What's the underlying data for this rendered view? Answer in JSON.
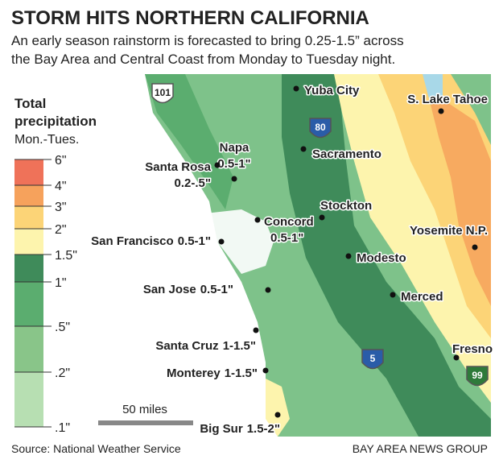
{
  "header": {
    "title": "STORM HITS NORTHERN CALIFORNIA",
    "subtitle": [
      "An early season rainstorm is forecasted to bring 0.25-1.5” across",
      "the Bay Area and Central Coast from Monday to Tuesday night."
    ]
  },
  "legend": {
    "title": [
      "Total",
      "precipitation"
    ],
    "subtitle": "Mon.-Tues.",
    "items": [
      {
        "label": "6\"",
        "color": "#ef7259"
      },
      {
        "label": "4\"",
        "color": "#f6a25c"
      },
      {
        "label": "3\"",
        "color": "#fcd477"
      },
      {
        "label": "2\"",
        "color": "#fdf4ad"
      },
      {
        "label": "1.5\"",
        "color": "#3f8b5a"
      },
      {
        "label": "1\"",
        "color": "#5bad6f"
      },
      {
        "label": ".5\"",
        "color": "#89c589"
      },
      {
        "label": ".2\"",
        "color": "#b7dfb2"
      },
      {
        "label": ".1\"",
        "color": null
      }
    ]
  },
  "places": [
    {
      "name": "Yuba City"
    },
    {
      "name": "S. Lake Tahoe"
    },
    {
      "name": "Sacramento"
    },
    {
      "name": "Napa",
      "amount": "0.5-1\""
    },
    {
      "name": "Santa Rosa",
      "amount": "0.2-.5\""
    },
    {
      "name": "Stockton"
    },
    {
      "name": "Concord",
      "amount": "0.5-1\""
    },
    {
      "name": "San Francisco",
      "amount": "0.5-1\""
    },
    {
      "name": "Yosemite N.P."
    },
    {
      "name": "Modesto"
    },
    {
      "name": "San Jose",
      "amount": "0.5-1\""
    },
    {
      "name": "Merced"
    },
    {
      "name": "Santa Cruz",
      "amount": "1-1.5\""
    },
    {
      "name": "Fresno"
    },
    {
      "name": "Monterey",
      "amount": "1-1.5\""
    },
    {
      "name": "Big Sur",
      "amount": "1.5-2\""
    }
  ],
  "highways": [
    "101",
    "80",
    "5",
    "99"
  ],
  "scale": "50 miles",
  "footer": {
    "source": "Source: National Weather Service",
    "credit": "BAY AREA NEWS GROUP"
  }
}
